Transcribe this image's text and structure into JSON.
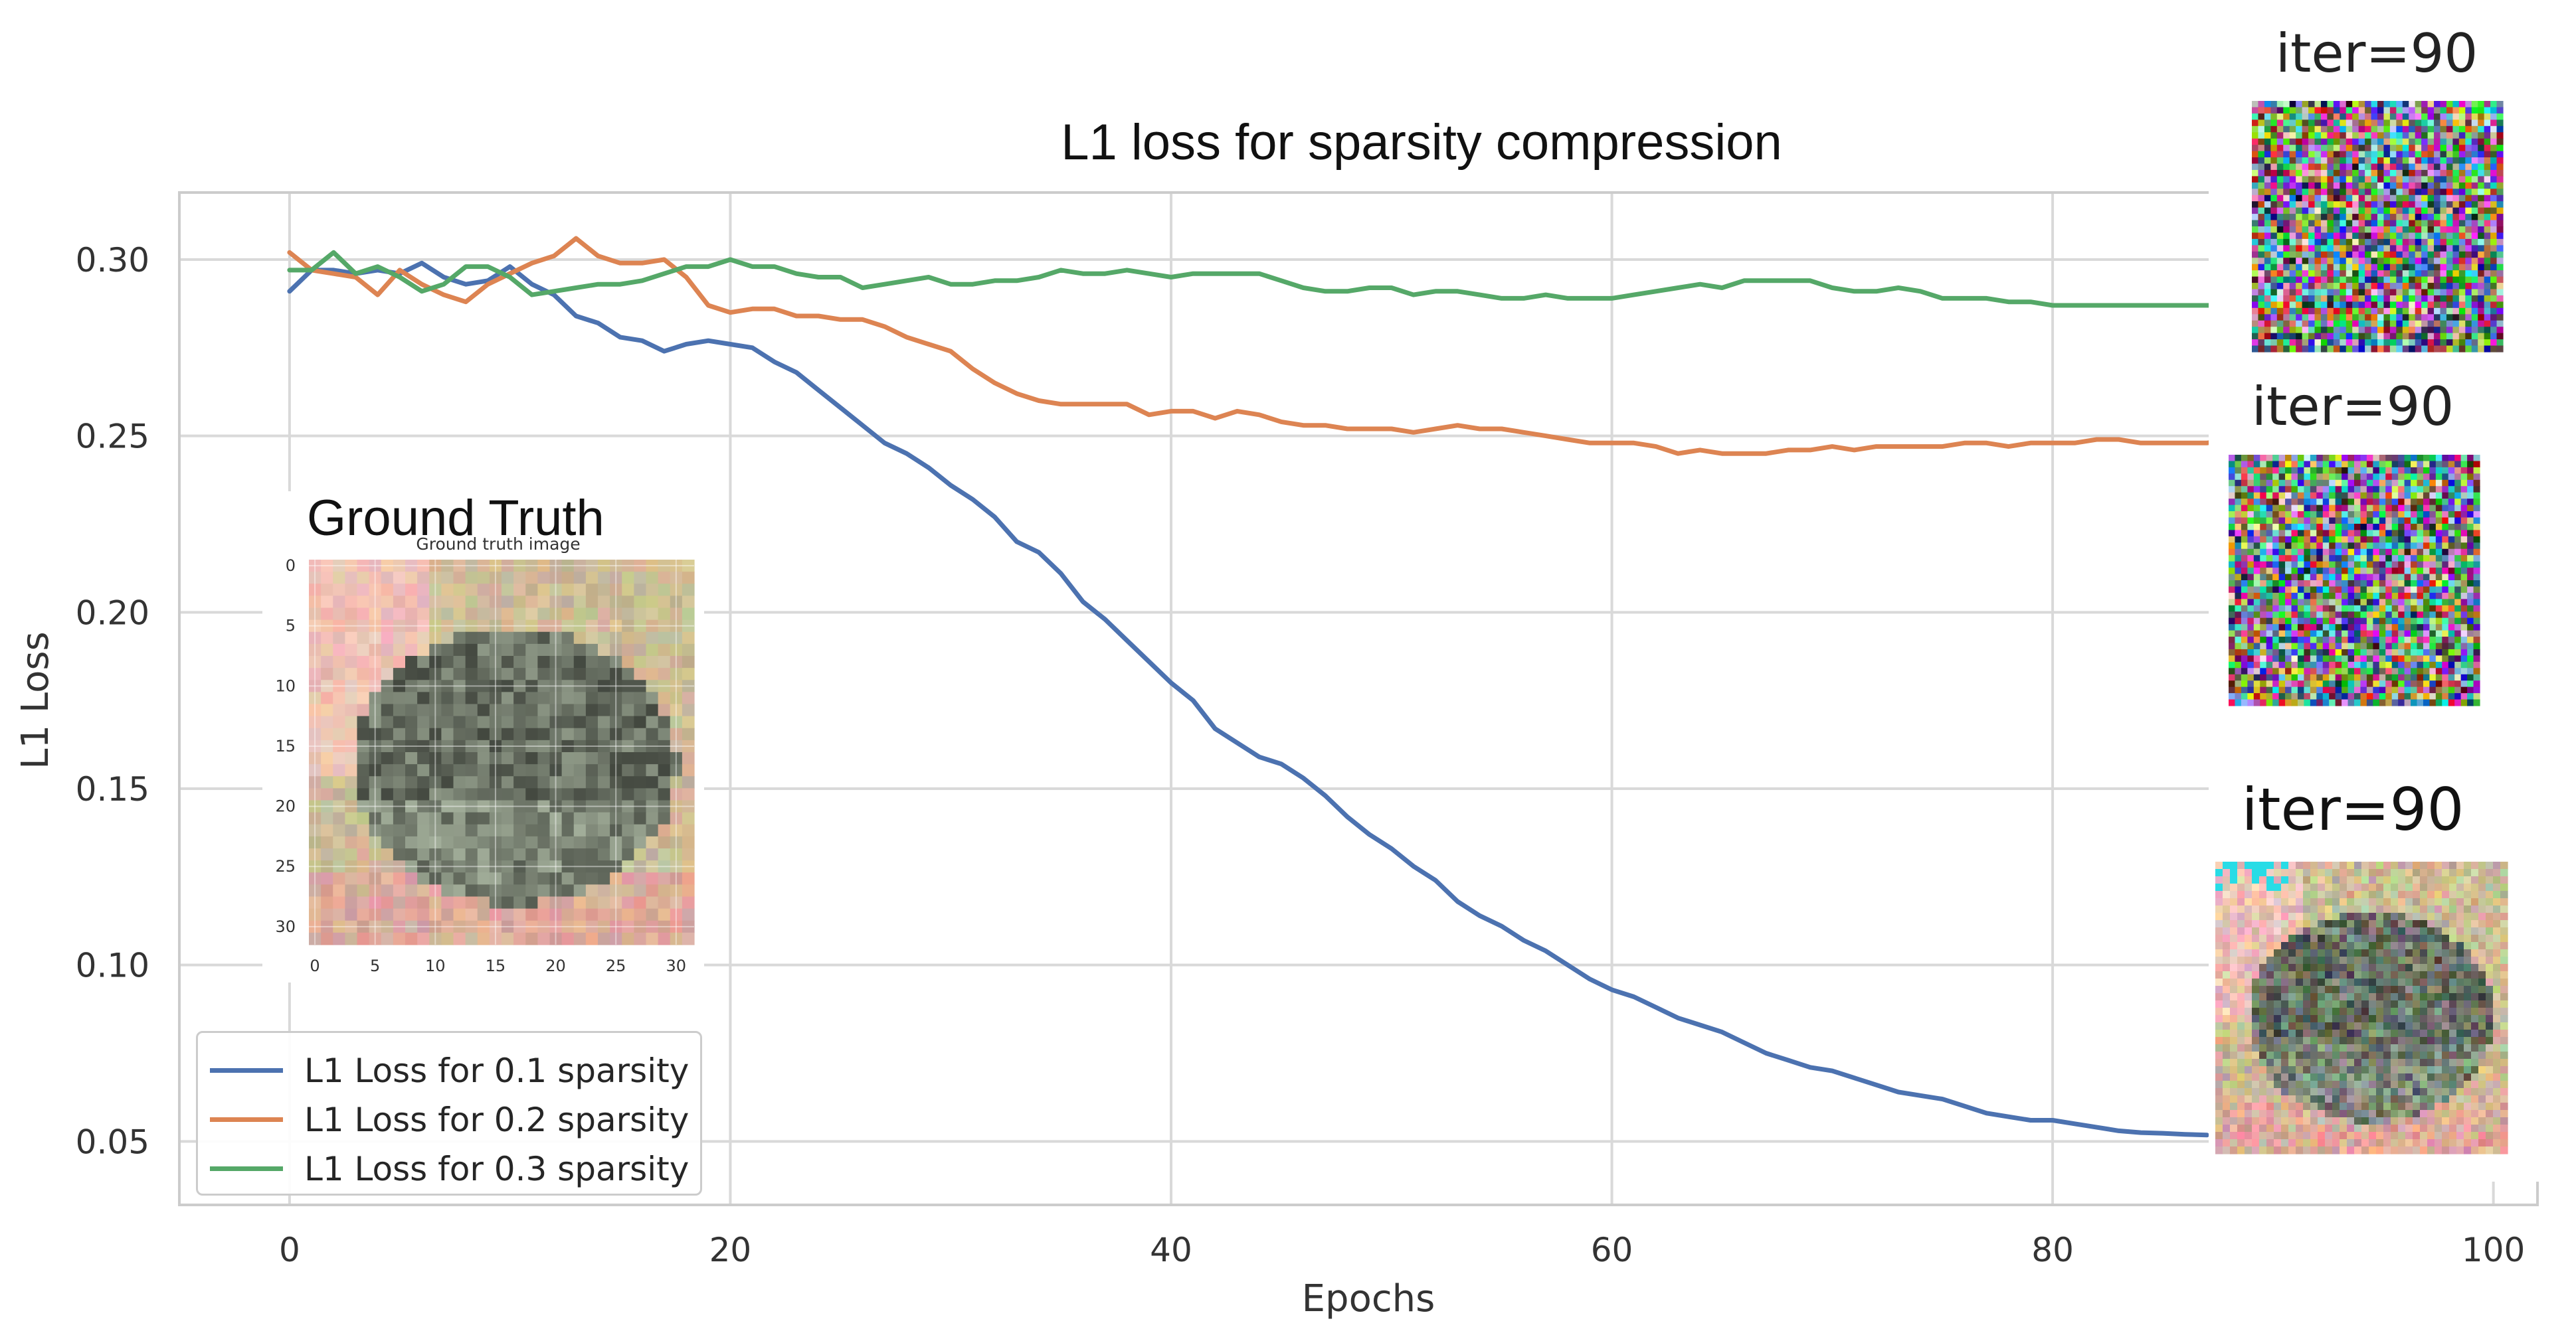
{
  "chart_data": {
    "type": "line",
    "title": "L1 loss for sparsity compression",
    "xlabel": "Epochs",
    "ylabel": "L1 Loss",
    "xlim": [
      -5,
      102
    ],
    "ylim": [
      0.032,
      0.319
    ],
    "xticks": [
      0,
      20,
      40,
      60,
      80,
      100
    ],
    "yticks": [
      0.05,
      0.1,
      0.15,
      0.2,
      0.25,
      0.3
    ],
    "xtick_labels": [
      "0",
      "20",
      "40",
      "60",
      "80",
      "100"
    ],
    "ytick_labels": [
      "0.05",
      "0.10",
      "0.15",
      "0.20",
      "0.25",
      "0.30"
    ],
    "grid": true,
    "legend_position": "bottom-left",
    "series": [
      {
        "name": "L1 Loss for 0.1 sparsity",
        "color": "#4c72b0",
        "x": [
          0,
          1,
          2,
          3,
          4,
          5,
          6,
          7,
          8,
          9,
          10,
          11,
          12,
          13,
          14,
          15,
          16,
          17,
          18,
          19,
          20,
          21,
          22,
          23,
          24,
          25,
          26,
          27,
          28,
          29,
          30,
          31,
          32,
          33,
          34,
          35,
          36,
          37,
          38,
          39,
          40,
          41,
          42,
          43,
          44,
          45,
          46,
          47,
          48,
          49,
          50,
          51,
          52,
          53,
          54,
          55,
          56,
          57,
          58,
          59,
          60,
          61,
          62,
          63,
          64,
          65,
          66,
          67,
          68,
          69,
          70,
          71,
          72,
          73,
          74,
          75,
          76,
          77,
          78,
          79,
          80,
          81,
          82,
          83,
          84,
          85,
          86,
          87
        ],
        "values": [
          0.291,
          0.297,
          0.297,
          0.296,
          0.297,
          0.296,
          0.299,
          0.295,
          0.293,
          0.294,
          0.298,
          0.293,
          0.29,
          0.284,
          0.282,
          0.278,
          0.277,
          0.274,
          0.276,
          0.277,
          0.276,
          0.275,
          0.271,
          0.268,
          0.263,
          0.258,
          0.253,
          0.248,
          0.245,
          0.241,
          0.236,
          0.232,
          0.227,
          0.22,
          0.217,
          0.211,
          0.203,
          0.198,
          0.192,
          0.186,
          0.18,
          0.175,
          0.167,
          0.163,
          0.159,
          0.157,
          0.153,
          0.148,
          0.142,
          0.137,
          0.133,
          0.128,
          0.124,
          0.118,
          0.114,
          0.111,
          0.107,
          0.104,
          0.1,
          0.096,
          0.093,
          0.091,
          0.088,
          0.085,
          0.083,
          0.081,
          0.078,
          0.075,
          0.073,
          0.071,
          0.07,
          0.068,
          0.066,
          0.064,
          0.063,
          0.062,
          0.06,
          0.058,
          0.057,
          0.056,
          0.056,
          0.055,
          0.054,
          0.053,
          0.0525,
          0.0523,
          0.052,
          0.0518
        ]
      },
      {
        "name": "L1 Loss for 0.2 sparsity",
        "color": "#dd8452",
        "x": [
          0,
          1,
          2,
          3,
          4,
          5,
          6,
          7,
          8,
          9,
          10,
          11,
          12,
          13,
          14,
          15,
          16,
          17,
          18,
          19,
          20,
          21,
          22,
          23,
          24,
          25,
          26,
          27,
          28,
          29,
          30,
          31,
          32,
          33,
          34,
          35,
          36,
          37,
          38,
          39,
          40,
          41,
          42,
          43,
          44,
          45,
          46,
          47,
          48,
          49,
          50,
          51,
          52,
          53,
          54,
          55,
          56,
          57,
          58,
          59,
          60,
          61,
          62,
          63,
          64,
          65,
          66,
          67,
          68,
          69,
          70,
          71,
          72,
          73,
          74,
          75,
          76,
          77,
          78,
          79,
          80,
          81,
          82,
          83,
          84,
          85,
          86,
          87,
          88
        ],
        "values": [
          0.302,
          0.297,
          0.296,
          0.295,
          0.29,
          0.297,
          0.293,
          0.29,
          0.288,
          0.293,
          0.296,
          0.299,
          0.301,
          0.306,
          0.301,
          0.299,
          0.299,
          0.3,
          0.295,
          0.287,
          0.285,
          0.286,
          0.286,
          0.284,
          0.284,
          0.283,
          0.283,
          0.281,
          0.278,
          0.276,
          0.274,
          0.269,
          0.265,
          0.262,
          0.26,
          0.259,
          0.259,
          0.259,
          0.259,
          0.256,
          0.257,
          0.257,
          0.255,
          0.257,
          0.256,
          0.254,
          0.253,
          0.253,
          0.252,
          0.252,
          0.252,
          0.251,
          0.252,
          0.253,
          0.252,
          0.252,
          0.251,
          0.25,
          0.249,
          0.248,
          0.248,
          0.248,
          0.247,
          0.245,
          0.246,
          0.245,
          0.245,
          0.245,
          0.246,
          0.246,
          0.247,
          0.246,
          0.247,
          0.247,
          0.247,
          0.247,
          0.248,
          0.248,
          0.247,
          0.248,
          0.248,
          0.248,
          0.249,
          0.249,
          0.248,
          0.248,
          0.248,
          0.248,
          0.249
        ]
      },
      {
        "name": "L1 Loss for 0.3 sparsity",
        "color": "#55a868",
        "x": [
          0,
          1,
          2,
          3,
          4,
          5,
          6,
          7,
          8,
          9,
          10,
          11,
          12,
          13,
          14,
          15,
          16,
          17,
          18,
          19,
          20,
          21,
          22,
          23,
          24,
          25,
          26,
          27,
          28,
          29,
          30,
          31,
          32,
          33,
          34,
          35,
          36,
          37,
          38,
          39,
          40,
          41,
          42,
          43,
          44,
          45,
          46,
          47,
          48,
          49,
          50,
          51,
          52,
          53,
          54,
          55,
          56,
          57,
          58,
          59,
          60,
          61,
          62,
          63,
          64,
          65,
          66,
          67,
          68,
          69,
          70,
          71,
          72,
          73,
          74,
          75,
          76,
          77,
          78,
          79,
          80,
          81,
          82,
          83,
          84,
          85,
          86,
          87,
          88,
          89
        ],
        "values": [
          0.297,
          0.297,
          0.302,
          0.296,
          0.298,
          0.295,
          0.291,
          0.293,
          0.298,
          0.298,
          0.295,
          0.29,
          0.291,
          0.292,
          0.293,
          0.293,
          0.294,
          0.296,
          0.298,
          0.298,
          0.3,
          0.298,
          0.298,
          0.296,
          0.295,
          0.295,
          0.292,
          0.293,
          0.294,
          0.295,
          0.293,
          0.293,
          0.294,
          0.294,
          0.295,
          0.297,
          0.296,
          0.296,
          0.297,
          0.296,
          0.295,
          0.296,
          0.296,
          0.296,
          0.296,
          0.294,
          0.292,
          0.291,
          0.291,
          0.292,
          0.292,
          0.29,
          0.291,
          0.291,
          0.29,
          0.289,
          0.289,
          0.29,
          0.289,
          0.289,
          0.289,
          0.29,
          0.291,
          0.292,
          0.293,
          0.292,
          0.294,
          0.294,
          0.294,
          0.294,
          0.292,
          0.291,
          0.291,
          0.292,
          0.291,
          0.289,
          0.289,
          0.289,
          0.288,
          0.288,
          0.287,
          0.287,
          0.287,
          0.287,
          0.287,
          0.287,
          0.287,
          0.287,
          0.287,
          0.287
        ]
      }
    ]
  },
  "insets": {
    "ground_truth": {
      "heading": "Ground Truth",
      "subtitle": "Ground truth image",
      "xtick_labels": [
        "0",
        "5",
        "10",
        "15",
        "20",
        "25",
        "30"
      ],
      "ytick_labels": [
        "0",
        "5",
        "10",
        "15",
        "20",
        "25",
        "30"
      ]
    },
    "reconstructions": [
      {
        "label": "iter=90",
        "style": "noise"
      },
      {
        "label": "iter=90",
        "style": "noise"
      },
      {
        "label": "iter=90",
        "style": "toad"
      }
    ]
  }
}
